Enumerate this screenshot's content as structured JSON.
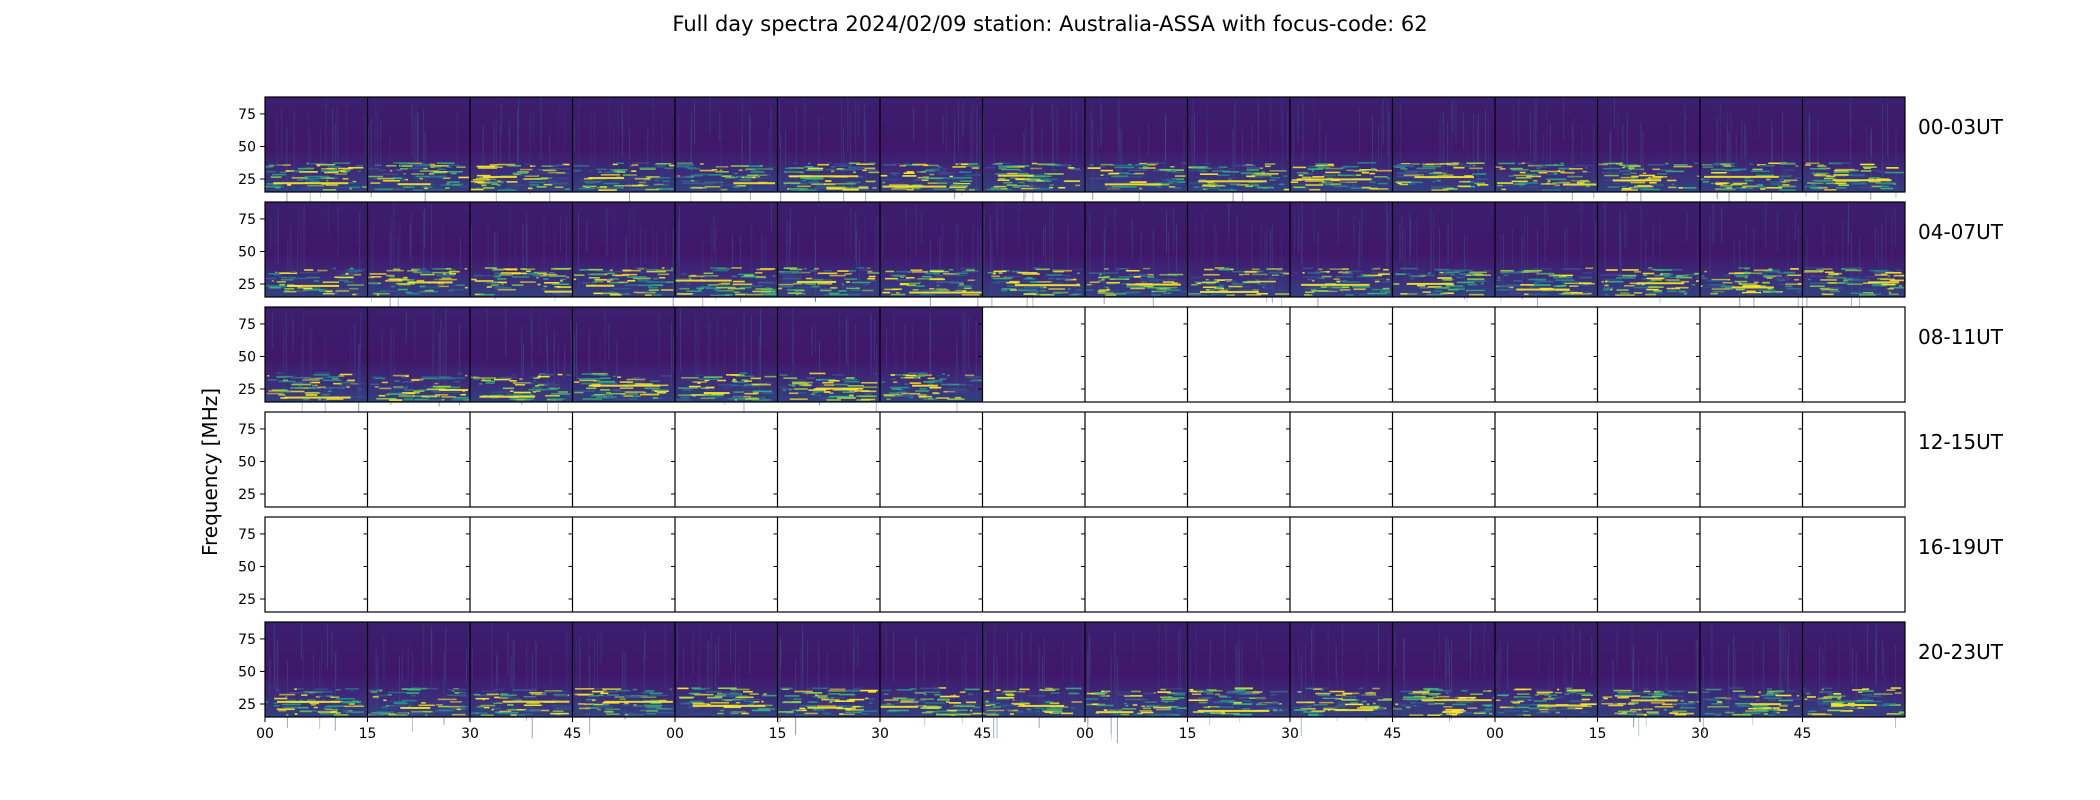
{
  "chart_data": {
    "type": "heatmap",
    "title": "Full day spectra 2024/02/09 station: Australia-ASSA with focus-code: 62",
    "ylabel": "Frequency [MHz]",
    "xlabel": "",
    "colormap": "viridis",
    "ylim": [
      15,
      88
    ],
    "y_ticks": [
      "75",
      "50",
      "25"
    ],
    "y_tick_values": [
      75,
      50,
      25
    ],
    "x_tick_labels": [
      "00",
      "15",
      "30",
      "45",
      "00",
      "15",
      "30",
      "45",
      "00",
      "15",
      "30",
      "45",
      "00",
      "15",
      "30",
      "45"
    ],
    "panels_per_row": 16,
    "rows": [
      {
        "label": "00-03UT",
        "panels_with_data": 16
      },
      {
        "label": "04-07UT",
        "panels_with_data": 16
      },
      {
        "label": "08-11UT",
        "panels_with_data": 7
      },
      {
        "label": "12-15UT",
        "panels_with_data": 0
      },
      {
        "label": "16-19UT",
        "panels_with_data": 0
      },
      {
        "label": "20-23UT",
        "panels_with_data": 16
      }
    ]
  }
}
